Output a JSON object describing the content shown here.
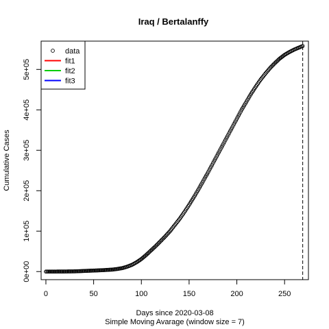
{
  "chart_data": {
    "type": "scatter",
    "title": "Iraq / Bertalanffy",
    "xlabel": "Days since 2020-03-08",
    "sublabel": "Simple Moving Avarage (window size = 7)",
    "ylabel": "Cumulative Cases",
    "xlim": [
      -5,
      275
    ],
    "ylim": [
      -20000,
      570000
    ],
    "x_ticks": [
      0,
      50,
      100,
      150,
      200,
      250
    ],
    "x_tick_labels": [
      "0",
      "50",
      "100",
      "150",
      "200",
      "250"
    ],
    "y_ticks": [
      0,
      100000,
      200000,
      300000,
      400000,
      500000
    ],
    "y_tick_labels": [
      "0e+00",
      "1e+05",
      "2e+05",
      "3e+05",
      "4e+05",
      "5e+05"
    ],
    "vline_x": 269,
    "legend_position": "top-left",
    "legend": [
      {
        "label": "data",
        "kind": "point",
        "color": "#000000"
      },
      {
        "label": "fit1",
        "kind": "line",
        "color": "#ff0000"
      },
      {
        "label": "fit2",
        "kind": "line",
        "color": "#00cd00"
      },
      {
        "label": "fit3",
        "kind": "line",
        "color": "#0000ff"
      }
    ],
    "series": [
      {
        "name": "data",
        "x": [
          0,
          10,
          20,
          30,
          40,
          50,
          60,
          70,
          75,
          80,
          85,
          90,
          95,
          100,
          105,
          110,
          115,
          120,
          125,
          130,
          135,
          140,
          145,
          150,
          155,
          160,
          165,
          170,
          175,
          180,
          185,
          190,
          195,
          200,
          205,
          210,
          215,
          220,
          225,
          230,
          235,
          240,
          245,
          250,
          255,
          260,
          265,
          269
        ],
        "y": [
          0,
          50,
          200,
          500,
          1500,
          2500,
          3500,
          5000,
          6500,
          8500,
          12000,
          16500,
          23000,
          31000,
          41000,
          52000,
          63000,
          75000,
          87000,
          100000,
          115000,
          130000,
          147000,
          165000,
          184000,
          204000,
          225000,
          246000,
          268000,
          290000,
          312000,
          334000,
          356000,
          378000,
          400000,
          420000,
          440000,
          458000,
          475000,
          490000,
          504000,
          516000,
          527000,
          536000,
          543000,
          549000,
          554000,
          558000
        ]
      }
    ]
  }
}
